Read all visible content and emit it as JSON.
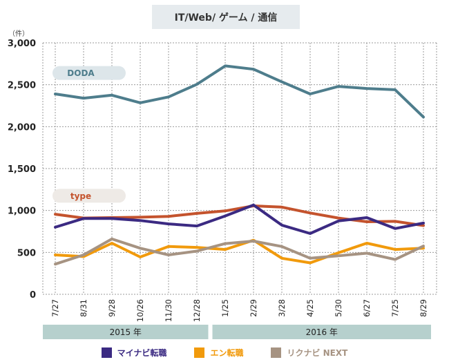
{
  "chart_data": {
    "type": "line",
    "title": "IT/Web/ ゲーム / 通信",
    "ylabel": "（件）",
    "ylim": [
      0,
      3000
    ],
    "yticks": [
      "3,000",
      "2,500",
      "2,000",
      "1,500",
      "1,000",
      "500",
      "0"
    ],
    "ytick_values": [
      3000,
      2500,
      2000,
      1500,
      1000,
      500,
      0
    ],
    "categories": [
      "7/27",
      "8/31",
      "9/28",
      "10/26",
      "11/30",
      "12/28",
      "1/25",
      "2/29",
      "3/28",
      "4/25",
      "5/30",
      "6/27",
      "7/25",
      "8/29"
    ],
    "year_groups": [
      {
        "label": "2015 年",
        "start": 0,
        "end": 5
      },
      {
        "label": "2016 年",
        "start": 6,
        "end": 13
      }
    ],
    "grid": true,
    "series": [
      {
        "name": "DODA",
        "color": "#4e7d8c",
        "values": [
          2390,
          2340,
          2375,
          2285,
          2355,
          2505,
          2725,
          2685,
          2535,
          2390,
          2480,
          2455,
          2440,
          2115
        ],
        "tag": "DODA",
        "tag_value": 2640,
        "tag_bg": "#dde6ea"
      },
      {
        "name": "type",
        "color": "#c4532d",
        "values": [
          955,
          910,
          915,
          920,
          930,
          965,
          995,
          1055,
          1040,
          970,
          910,
          865,
          870,
          820
        ],
        "tag": "type",
        "tag_value": 1175,
        "tag_bg": "#eeeae6"
      },
      {
        "name": "マイナビ転職",
        "color": "#3b2a82",
        "values": [
          800,
          905,
          905,
          880,
          840,
          815,
          935,
          1065,
          825,
          725,
          875,
          915,
          785,
          850
        ]
      },
      {
        "name": "エン転職",
        "color": "#f19a0c",
        "values": [
          470,
          450,
          610,
          445,
          570,
          560,
          535,
          645,
          430,
          375,
          495,
          610,
          535,
          550
        ]
      },
      {
        "name": "リクナビ NEXT",
        "color": "#a69382",
        "values": [
          360,
          470,
          660,
          550,
          470,
          515,
          605,
          635,
          570,
          430,
          460,
          490,
          415,
          575
        ]
      }
    ]
  },
  "legend": [
    {
      "label": "マイナビ転職",
      "color": "#3b2a82"
    },
    {
      "label": "エン転職",
      "color": "#f19a0c"
    },
    {
      "label": "リクナビ NEXT",
      "color": "#a69382"
    }
  ]
}
